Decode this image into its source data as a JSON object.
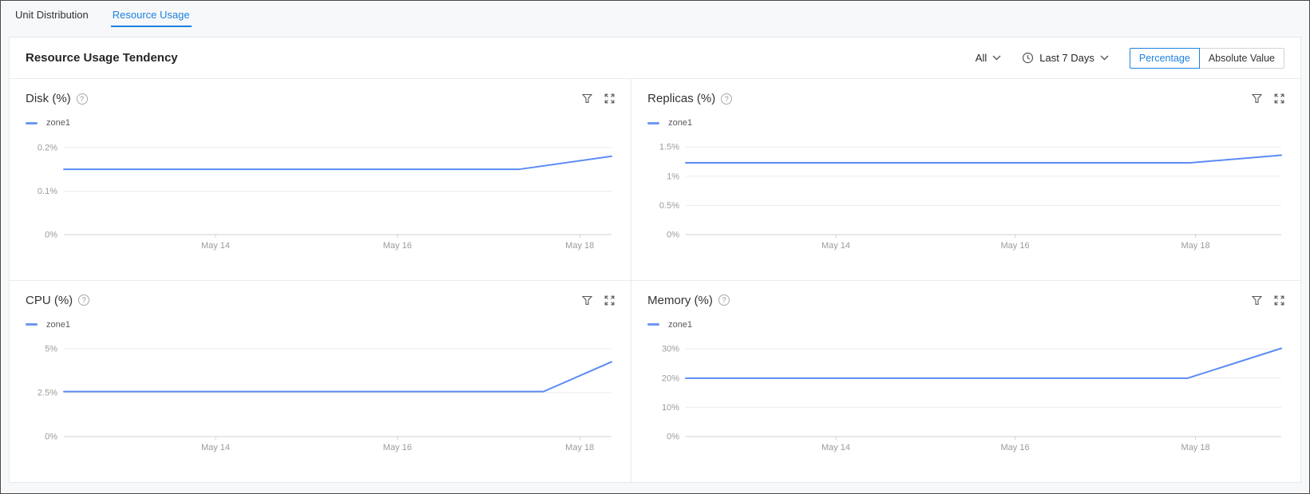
{
  "tabs": [
    {
      "label": "Unit Distribution",
      "active": false
    },
    {
      "label": "Resource Usage",
      "active": true
    }
  ],
  "header": {
    "title": "Resource Usage Tendency",
    "scope_dropdown": {
      "label": "All"
    },
    "time_dropdown": {
      "label": "Last 7 Days"
    },
    "toggle": [
      {
        "label": "Percentage",
        "active": true
      },
      {
        "label": "Absolute Value",
        "active": false
      }
    ]
  },
  "colors": {
    "accent": "#1b82e2",
    "chart_line": "#5b8bf5",
    "grid_line": "#ebebeb",
    "axis_line": "#d2d2d2",
    "tick_text": "#9b9b9b"
  },
  "chart_data": [
    {
      "type": "line",
      "title": "Disk (%)",
      "unit": "%",
      "ymax": 0.22,
      "y_ticks": [
        {
          "v": 0.2,
          "label": "0.2%"
        },
        {
          "v": 0.1,
          "label": "0.1%"
        },
        {
          "v": 0,
          "label": "0%"
        }
      ],
      "x_ticks": [
        {
          "f": 0.277,
          "label": "May 14"
        },
        {
          "f": 0.609,
          "label": "May 16"
        },
        {
          "f": 0.942,
          "label": "May 18"
        }
      ],
      "series": [
        {
          "name": "zone1",
          "points": [
            [
              0,
              0.15
            ],
            [
              0.831,
              0.15
            ],
            [
              1,
              0.18
            ]
          ]
        }
      ]
    },
    {
      "type": "line",
      "title": "Replicas (%)",
      "unit": "%",
      "ymax": 1.64,
      "y_ticks": [
        {
          "v": 1.5,
          "label": "1.5%"
        },
        {
          "v": 1,
          "label": "1%"
        },
        {
          "v": 0.5,
          "label": "0.5%"
        },
        {
          "v": 0,
          "label": "0%"
        }
      ],
      "x_ticks": [
        {
          "f": 0.252,
          "label": "May 14"
        },
        {
          "f": 0.553,
          "label": "May 16"
        },
        {
          "f": 0.856,
          "label": "May 18"
        }
      ],
      "series": [
        {
          "name": "zone1",
          "points": [
            [
              0,
              1.23
            ],
            [
              0.847,
              1.23
            ],
            [
              1,
              1.36
            ]
          ]
        }
      ]
    },
    {
      "type": "line",
      "title": "CPU (%)",
      "unit": "%",
      "ymax": 5.45,
      "y_ticks": [
        {
          "v": 5,
          "label": "5%"
        },
        {
          "v": 2.5,
          "label": "2.5%"
        },
        {
          "v": 0,
          "label": "0%"
        }
      ],
      "x_ticks": [
        {
          "f": 0.277,
          "label": "May 14"
        },
        {
          "f": 0.609,
          "label": "May 16"
        },
        {
          "f": 0.942,
          "label": "May 18"
        }
      ],
      "series": [
        {
          "name": "zone1",
          "points": [
            [
              0,
              2.56
            ],
            [
              0.876,
              2.56
            ],
            [
              1,
              4.25
            ]
          ]
        }
      ]
    },
    {
      "type": "line",
      "title": "Memory (%)",
      "unit": "%",
      "ymax": 32.8,
      "y_ticks": [
        {
          "v": 30,
          "label": "30%"
        },
        {
          "v": 20,
          "label": "20%"
        },
        {
          "v": 10,
          "label": "10%"
        },
        {
          "v": 0,
          "label": "0%"
        }
      ],
      "x_ticks": [
        {
          "f": 0.252,
          "label": "May 14"
        },
        {
          "f": 0.553,
          "label": "May 16"
        },
        {
          "f": 0.856,
          "label": "May 18"
        }
      ],
      "series": [
        {
          "name": "zone1",
          "points": [
            [
              0,
              20
            ],
            [
              0.843,
              20
            ],
            [
              1,
              30.2
            ]
          ]
        }
      ]
    }
  ]
}
